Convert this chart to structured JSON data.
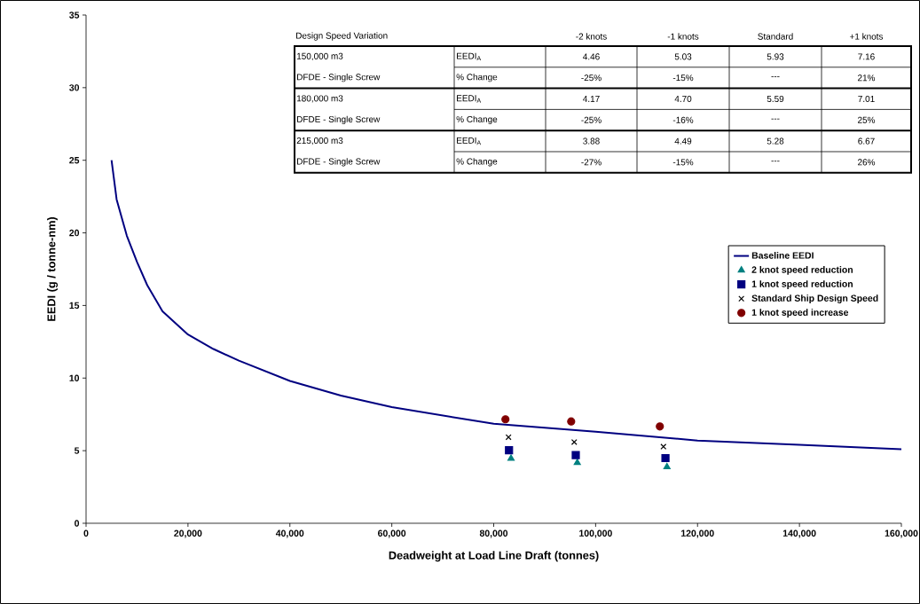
{
  "chart_data": {
    "type": "scatter",
    "xlabel": "Deadweight at Load Line Draft  (tonnes)",
    "ylabel": "EEDI  (g / tonne-nm)",
    "xlim": [
      0,
      160000
    ],
    "ylim": [
      0,
      35
    ],
    "xticks": [
      0,
      {
        "value": 20000,
        "label": "20,000"
      },
      {
        "value": 40000,
        "label": "40,000"
      },
      {
        "value": 60000,
        "label": "60,000"
      },
      {
        "value": 80000,
        "label": "80,000"
      },
      {
        "value": 100000,
        "label": "100,000"
      },
      {
        "value": 120000,
        "label": "120,000"
      },
      {
        "value": 140000,
        "label": "140,000"
      },
      {
        "value": 160000,
        "label": "160,000"
      }
    ],
    "yticks": [
      0,
      5,
      10,
      15,
      20,
      25,
      30,
      35
    ],
    "legend": "right",
    "series": [
      {
        "name": "Baseline EEDI",
        "type": "line",
        "color": "#000080",
        "x": [
          5000,
          6000,
          8000,
          10000,
          12000,
          15000,
          20000,
          25000,
          30000,
          40000,
          50000,
          60000,
          80000,
          100000,
          120000,
          140000,
          160000
        ],
        "values": [
          25,
          22.3,
          19.8,
          18.0,
          16.4,
          14.6,
          13.0,
          12.0,
          11.2,
          9.8,
          8.8,
          8.0,
          6.85,
          6.3,
          5.7,
          5.4,
          5.1
        ]
      },
      {
        "name": "2 knot speed reduction",
        "marker": "triangle",
        "color": "#008080",
        "x": [
          83400,
          96400,
          114000
        ],
        "values": [
          4.46,
          4.17,
          3.88
        ]
      },
      {
        "name": "1 knot speed reduction",
        "marker": "square",
        "color": "#000080",
        "x": [
          83000,
          96100,
          113700
        ],
        "values": [
          5.03,
          4.7,
          4.49
        ]
      },
      {
        "name": "Standard Ship Design Speed",
        "marker": "cross",
        "color": "#000000",
        "x": [
          82900,
          95800,
          113300
        ],
        "values": [
          5.93,
          5.59,
          5.28
        ]
      },
      {
        "name": "1 knot speed increase",
        "marker": "circle",
        "color": "#800000",
        "x": [
          82300,
          95200,
          112600
        ],
        "values": [
          7.16,
          7.01,
          6.67
        ]
      }
    ],
    "annotations": [
      "Design Speed Variation",
      "-2 knots",
      "-1 knots",
      "Standard",
      "+1 knots",
      "150,000 m3",
      "EEDI$_{A}$",
      "4.46",
      "5.03",
      "5.93",
      "7.16",
      "DFDE - Single Screw",
      "% Change",
      "-25%",
      "-15%",
      "---",
      "21%",
      "180,000 m3",
      "EEDI$_{A}$",
      "4.17",
      "4.70",
      "5.59",
      "7.01",
      "DFDE - Single Screw",
      "% Change",
      "-25%",
      "-16%",
      "---",
      "25%",
      "215,000 m3",
      "EEDI$_{A}$",
      "3.88",
      "4.49",
      "5.28",
      "6.67",
      "DFDE - Single Screw",
      "% Change",
      "-27%",
      "-15%",
      "---",
      "26%"
    ]
  }
}
